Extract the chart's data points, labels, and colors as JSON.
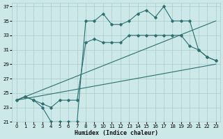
{
  "xlabel": "Humidex (Indice chaleur)",
  "background_color": "#cce8e8",
  "grid_color": "#aacccc",
  "line_color": "#2d7070",
  "xlim": [
    -0.5,
    23.5
  ],
  "ylim": [
    21,
    37.5
  ],
  "yticks": [
    21,
    23,
    25,
    27,
    29,
    31,
    33,
    35,
    37
  ],
  "xticks": [
    0,
    1,
    2,
    3,
    4,
    5,
    6,
    7,
    8,
    9,
    10,
    11,
    12,
    13,
    14,
    15,
    16,
    17,
    18,
    19,
    20,
    21,
    22,
    23
  ],
  "series": [
    {
      "x": [
        0,
        1,
        2,
        3,
        4,
        5,
        6,
        7,
        8,
        9,
        10,
        11,
        12,
        13,
        14,
        15,
        16,
        17,
        18,
        19,
        20,
        21,
        22,
        23
      ],
      "y": [
        24,
        24.5,
        24,
        23,
        21,
        21,
        21,
        21,
        35,
        35,
        36,
        34.5,
        34.5,
        35,
        36,
        36.5,
        35.5,
        37,
        35,
        35,
        35,
        31,
        30,
        29.5
      ]
    },
    {
      "x": [
        0,
        1,
        2,
        3,
        4,
        5,
        6,
        7,
        8,
        9,
        10,
        11,
        12,
        13,
        14,
        15,
        16,
        17,
        18,
        19,
        20,
        21,
        22,
        23
      ],
      "y": [
        24,
        24.5,
        24,
        23.5,
        23,
        24,
        24,
        24,
        32,
        32.5,
        32,
        32,
        32,
        33,
        33,
        33,
        33,
        33,
        33,
        33,
        31.5,
        31,
        30,
        29.5
      ]
    },
    {
      "x": [
        0,
        23
      ],
      "y": [
        24,
        35
      ]
    },
    {
      "x": [
        0,
        23
      ],
      "y": [
        24,
        29
      ]
    }
  ]
}
